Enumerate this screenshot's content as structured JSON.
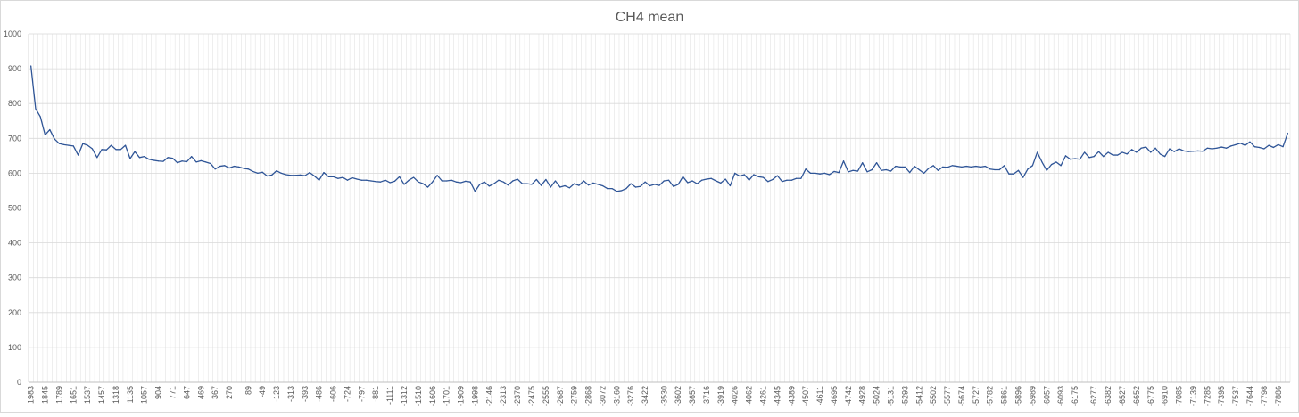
{
  "chart_data": {
    "type": "line",
    "title": "CH4 mean",
    "xlabel": "",
    "ylabel": "",
    "ylim": [
      0,
      1000
    ],
    "yticks": [
      0,
      100,
      200,
      300,
      400,
      500,
      600,
      700,
      800,
      900,
      1000
    ],
    "grid": true,
    "legend": "none",
    "x_tick_labels": [
      "1983",
      "1845",
      "1789",
      "1651",
      "1537",
      "1457",
      "1318",
      "1135",
      "1057",
      "904",
      "771",
      "647",
      "469",
      "367",
      "270",
      "89",
      "-49",
      "-123",
      "-313",
      "-393",
      "-486",
      "-606",
      "-724",
      "-797",
      "-881",
      "-1111",
      "-1312",
      "-1510",
      "-1606",
      "-1701",
      "-1909",
      "-1998",
      "-2146",
      "-2313",
      "-2370",
      "-2475",
      "-2555",
      "-2687",
      "-2759",
      "-2868",
      "-3072",
      "-3160",
      "-3276",
      "-3422",
      "-3530",
      "-3602",
      "-3657",
      "-3716",
      "-3919",
      "-4026",
      "-4062",
      "-4261",
      "-4345",
      "-4389",
      "-4507",
      "-4611",
      "-4695",
      "-4742",
      "-4928",
      "-5024",
      "-5131",
      "-5293",
      "-5412",
      "-5502",
      "-5577",
      "-5674",
      "-5727",
      "-5782",
      "-5861",
      "-5896",
      "-5989",
      "-6057",
      "-6093",
      "-6175",
      "-6277",
      "-6382",
      "-6527",
      "-6652",
      "-6775",
      "-6910",
      "-7085",
      "-7139",
      "-7285",
      "-7395",
      "-7537",
      "-7644",
      "-7798",
      "-7886"
    ],
    "series": [
      {
        "name": "",
        "color": "#2f5597",
        "values": [
          908,
          785,
          762,
          710,
          725,
          698,
          685,
          682,
          680,
          678,
          652,
          685,
          680,
          670,
          645,
          668,
          667,
          680,
          668,
          668,
          680,
          642,
          662,
          645,
          648,
          640,
          637,
          635,
          634,
          645,
          643,
          630,
          635,
          633,
          648,
          632,
          636,
          632,
          628,
          612,
          620,
          622,
          615,
          620,
          618,
          614,
          612,
          605,
          600,
          603,
          592,
          595,
          607,
          600,
          596,
          594,
          594,
          595,
          593,
          602,
          592,
          580,
          602,
          590,
          590,
          585,
          588,
          580,
          587,
          583,
          580,
          580,
          578,
          576,
          575,
          580,
          573,
          577,
          590,
          568,
          580,
          588,
          575,
          570,
          560,
          575,
          594,
          578,
          578,
          580,
          575,
          573,
          577,
          575,
          548,
          568,
          575,
          563,
          570,
          580,
          575,
          566,
          578,
          583,
          570,
          570,
          568,
          582,
          565,
          582,
          560,
          578,
          560,
          564,
          558,
          570,
          565,
          578,
          566,
          572,
          568,
          564,
          556,
          556,
          548,
          550,
          556,
          570,
          560,
          562,
          575,
          564,
          568,
          565,
          578,
          580,
          562,
          568,
          590,
          573,
          578,
          570,
          580,
          583,
          585,
          578,
          572,
          583,
          564,
          600,
          592,
          596,
          580,
          596,
          590,
          588,
          576,
          582,
          593,
          576,
          580,
          580,
          585,
          585,
          612,
          600,
          600,
          598,
          600,
          596,
          605,
          602,
          635,
          604,
          608,
          606,
          630,
          604,
          610,
          630,
          608,
          610,
          606,
          620,
          618,
          618,
          602,
          620,
          610,
          600,
          614,
          622,
          608,
          618,
          617,
          622,
          620,
          618,
          620,
          618,
          620,
          618,
          620,
          612,
          610,
          610,
          622,
          598,
          598,
          608,
          588,
          612,
          622,
          660,
          632,
          608,
          625,
          632,
          622,
          650,
          640,
          642,
          640,
          660,
          645,
          648,
          662,
          648,
          660,
          652,
          652,
          660,
          655,
          668,
          660,
          672,
          675,
          660,
          672,
          655,
          648,
          670,
          662,
          670,
          664,
          662,
          663,
          664,
          663,
          672,
          670,
          672,
          675,
          672,
          678,
          682,
          686,
          680,
          690,
          676,
          674,
          670,
          680,
          674,
          682,
          676,
          715
        ]
      }
    ]
  }
}
